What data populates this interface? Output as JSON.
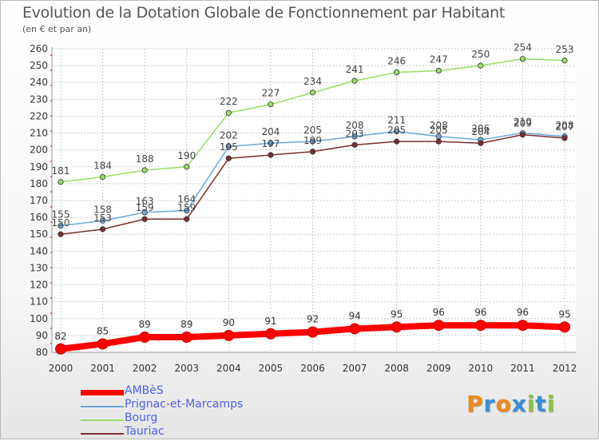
{
  "title": "Evolution de la Dotation Globale de Fonctionnement par Habitant",
  "subtitle": "(en € et par an)",
  "logo_text": "Proxiti",
  "colors": {
    "grid": "#cccccc",
    "axis": "#999999",
    "legend_text": "#4e63e6"
  },
  "chart_data": {
    "type": "line",
    "title": "Evolution de la Dotation Globale de Fonctionnement par Habitant",
    "subtitle": "(en € et par an)",
    "xlabel": "",
    "ylabel": "",
    "x": [
      "2000",
      "2001",
      "2002",
      "2003",
      "2004",
      "2005",
      "2006",
      "2007",
      "2008",
      "2009",
      "2010",
      "2011",
      "2012"
    ],
    "ylim": [
      80,
      260
    ],
    "yticks": [
      80,
      90,
      100,
      110,
      120,
      130,
      140,
      150,
      160,
      170,
      180,
      190,
      200,
      210,
      220,
      230,
      240,
      250,
      260
    ],
    "grid": true,
    "legend_position": "bottom-left",
    "series": [
      {
        "name": "AMBèS",
        "color": "#ff0000",
        "values": [
          82,
          85,
          89,
          89,
          90,
          91,
          92,
          94,
          95,
          96,
          96,
          96,
          95
        ]
      },
      {
        "name": "Prignac-et-Marcamps",
        "color": "#6fa8dc",
        "values": [
          155,
          158,
          163,
          164,
          202,
          204,
          205,
          208,
          211,
          208,
          206,
          210,
          208
        ]
      },
      {
        "name": "Bourg",
        "color": "#99dd66",
        "values": [
          181,
          184,
          188,
          190,
          222,
          227,
          234,
          241,
          246,
          247,
          250,
          254,
          253
        ]
      },
      {
        "name": "Tauriac",
        "color": "#7a2e2e",
        "values": [
          150,
          153,
          159,
          159,
          195,
          197,
          199,
          203,
          205,
          205,
          204,
          209,
          207
        ]
      }
    ]
  }
}
